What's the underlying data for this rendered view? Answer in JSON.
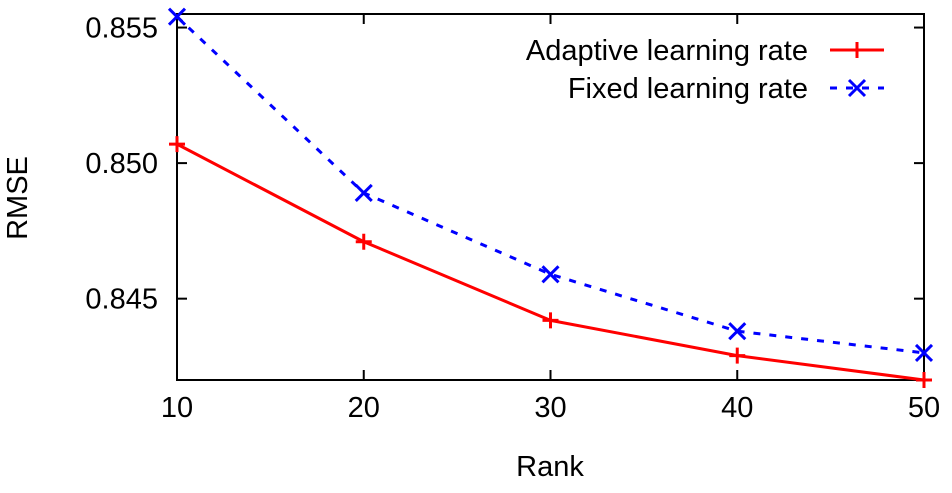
{
  "chart_data": {
    "type": "line",
    "title": "",
    "xlabel": "Rank",
    "ylabel": "RMSE",
    "x": [
      10,
      20,
      30,
      40,
      50
    ],
    "xticks": [
      "10",
      "20",
      "30",
      "40",
      "50"
    ],
    "yticks": [
      "0.845",
      "0.850",
      "0.855"
    ],
    "ytick_values": [
      0.845,
      0.85,
      0.855
    ],
    "xlim": [
      10,
      50
    ],
    "ylim": [
      0.842,
      0.8555
    ],
    "grid": false,
    "legend_position": "top-right",
    "series": [
      {
        "name": "Adaptive learning rate",
        "values": [
          0.8507,
          0.8471,
          0.8442,
          0.8429,
          0.842
        ],
        "color": "#ff0000",
        "line_style": "solid",
        "marker": "plus"
      },
      {
        "name": "Fixed learning rate",
        "values": [
          0.8554,
          0.8489,
          0.8459,
          0.8438,
          0.843
        ],
        "color": "#0000ff",
        "line_style": "dashed",
        "marker": "cross"
      }
    ]
  }
}
